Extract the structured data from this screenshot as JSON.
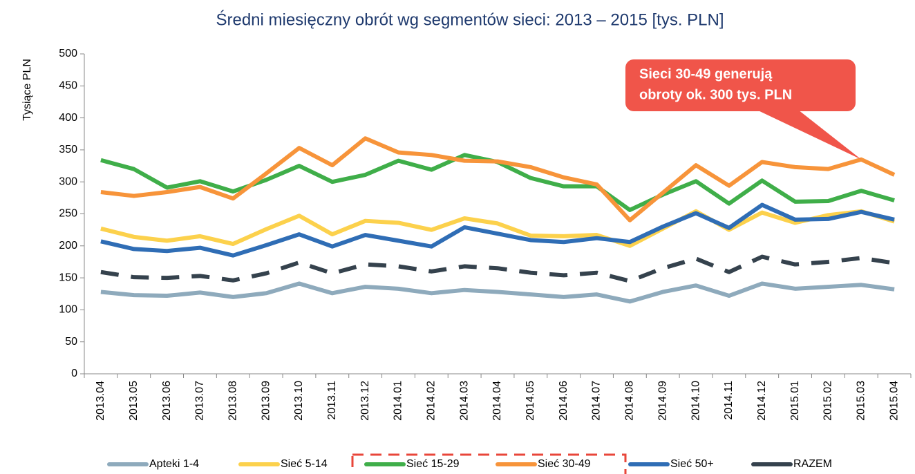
{
  "chart_data": {
    "type": "line",
    "title": "Średni miesięczny obrót wg segmentów sieci: 2013 – 2015 [tys. PLN]",
    "y_label": "Tysiące PLN",
    "categories": [
      "2013.04",
      "2013.05",
      "2013.06",
      "2013.07",
      "2013.08",
      "2013.09",
      "2013.10",
      "2013.11",
      "2013.12",
      "2014.01",
      "2014.02",
      "2014.03",
      "2014.04",
      "2014.05",
      "2014.06",
      "2014.07",
      "2014.08",
      "2014.09",
      "2014.10",
      "2014.11",
      "2014.12",
      "2015.01",
      "2015.02",
      "2015.03",
      "2015.04"
    ],
    "series": [
      {
        "name": "Apteki 1-4",
        "color": "#8eaabc",
        "values": [
          128,
          123,
          122,
          127,
          120,
          126,
          141,
          126,
          136,
          133,
          126,
          131,
          128,
          124,
          120,
          124,
          113,
          128,
          138,
          122,
          141,
          133,
          136,
          139,
          132
        ]
      },
      {
        "name": "Sieć 5-14",
        "color": "#fcd14c",
        "values": [
          227,
          214,
          208,
          215,
          203,
          226,
          247,
          218,
          239,
          236,
          225,
          243,
          235,
          216,
          215,
          217,
          200,
          227,
          254,
          225,
          252,
          236,
          248,
          254,
          238
        ]
      },
      {
        "name": "Sieć 15-29",
        "color": "#3fae49",
        "values": [
          334,
          320,
          291,
          301,
          285,
          303,
          325,
          300,
          311,
          333,
          319,
          342,
          331,
          306,
          293,
          293,
          256,
          280,
          301,
          266,
          302,
          269,
          270,
          286,
          271
        ]
      },
      {
        "name": "Sieć 30-49",
        "color": "#f7943a",
        "values": [
          284,
          278,
          284,
          292,
          274,
          313,
          353,
          326,
          368,
          346,
          342,
          333,
          332,
          323,
          307,
          296,
          240,
          283,
          326,
          294,
          331,
          323,
          320,
          335,
          311
        ]
      },
      {
        "name": "Sieć 50+",
        "color": "#2f6db5",
        "values": [
          207,
          195,
          192,
          197,
          185,
          201,
          218,
          199,
          217,
          208,
          199,
          229,
          219,
          209,
          206,
          212,
          206,
          230,
          251,
          228,
          264,
          241,
          242,
          253,
          241
        ]
      },
      {
        "name": "RAZEM",
        "color": "#35424d",
        "dashed": true,
        "values": [
          159,
          151,
          150,
          153,
          146,
          157,
          174,
          157,
          171,
          168,
          160,
          168,
          165,
          158,
          154,
          158,
          145,
          165,
          180,
          159,
          183,
          171,
          175,
          181,
          173
        ]
      }
    ],
    "annotation": {
      "lines": [
        "Sieci 30-49 generują",
        "obroty ok. 300 tys. PLN"
      ],
      "series": 3,
      "index": 23,
      "color": "#f0554a"
    },
    "ylim": [
      0,
      500
    ],
    "yticks": [
      0,
      50,
      100,
      150,
      200,
      250,
      300,
      350,
      400,
      450,
      500
    ],
    "grid": false,
    "legend": "bottom"
  }
}
